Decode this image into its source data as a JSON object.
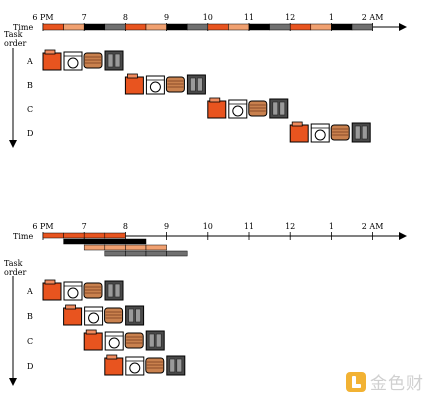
{
  "axis": {
    "time_label": "Time",
    "ticks": [
      "6 PM",
      "7",
      "8",
      "9",
      "10",
      "11",
      "12",
      "1",
      "2 AM"
    ]
  },
  "task_axis": {
    "label_line1": "Task",
    "label_line2": "order"
  },
  "tasks": [
    "A",
    "B",
    "C",
    "D"
  ],
  "stages": [
    {
      "name": "washer",
      "icon": "washer-icon",
      "color": "#e8541f"
    },
    {
      "name": "dryer",
      "icon": "dryer-icon",
      "color": "#ffffff"
    },
    {
      "name": "folder",
      "icon": "folded-clothes-icon",
      "color": "#c9814e"
    },
    {
      "name": "closet",
      "icon": "closet-icon",
      "color": "#4a4a4a"
    }
  ],
  "timeline_colors": {
    "washer": "#e8541f",
    "dryer": "#f0a070",
    "folder": "#000000",
    "closet": "#707070"
  },
  "colors": {
    "washer_light": "#f08a5d",
    "fold_stripe": "#8a4a28",
    "closet_panel": "#9a9a9a"
  },
  "watermark": {
    "text": "金色财"
  }
}
